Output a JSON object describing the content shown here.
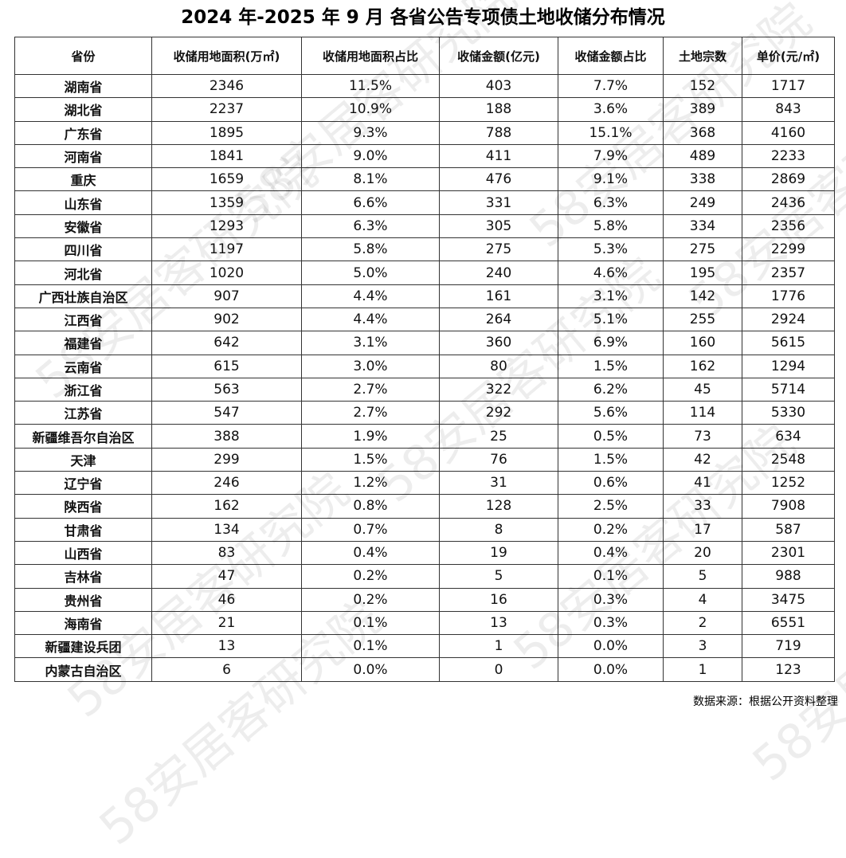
{
  "title": "2024 年-2025 年 9 月  各省公告专项债土地收储分布情况",
  "watermark": "58安居客研究院",
  "source": "数据来源：根据公开资料整理",
  "table": {
    "header": [
      "省份",
      "收储用地面积(万㎡)",
      "收储用地面积占比",
      "收储金额(亿元)",
      "收储金额占比",
      "土地宗数",
      "单价(元/㎡)"
    ],
    "rows": [
      [
        "湖南省",
        "2346",
        "11.5%",
        "403",
        "7.7%",
        "152",
        "1717"
      ],
      [
        "湖北省",
        "2237",
        "10.9%",
        "188",
        "3.6%",
        "389",
        "843"
      ],
      [
        "广东省",
        "1895",
        "9.3%",
        "788",
        "15.1%",
        "368",
        "4160"
      ],
      [
        "河南省",
        "1841",
        "9.0%",
        "411",
        "7.9%",
        "489",
        "2233"
      ],
      [
        "重庆",
        "1659",
        "8.1%",
        "476",
        "9.1%",
        "338",
        "2869"
      ],
      [
        "山东省",
        "1359",
        "6.6%",
        "331",
        "6.3%",
        "249",
        "2436"
      ],
      [
        "安徽省",
        "1293",
        "6.3%",
        "305",
        "5.8%",
        "334",
        "2356"
      ],
      [
        "四川省",
        "1197",
        "5.8%",
        "275",
        "5.3%",
        "275",
        "2299"
      ],
      [
        "河北省",
        "1020",
        "5.0%",
        "240",
        "4.6%",
        "195",
        "2357"
      ],
      [
        "广西壮族自治区",
        "907",
        "4.4%",
        "161",
        "3.1%",
        "142",
        "1776"
      ],
      [
        "江西省",
        "902",
        "4.4%",
        "264",
        "5.1%",
        "255",
        "2924"
      ],
      [
        "福建省",
        "642",
        "3.1%",
        "360",
        "6.9%",
        "160",
        "5615"
      ],
      [
        "云南省",
        "615",
        "3.0%",
        "80",
        "1.5%",
        "162",
        "1294"
      ],
      [
        "浙江省",
        "563",
        "2.7%",
        "322",
        "6.2%",
        "45",
        "5714"
      ],
      [
        "江苏省",
        "547",
        "2.7%",
        "292",
        "5.6%",
        "114",
        "5330"
      ],
      [
        "新疆维吾尔自治区",
        "388",
        "1.9%",
        "25",
        "0.5%",
        "73",
        "634"
      ],
      [
        "天津",
        "299",
        "1.5%",
        "76",
        "1.5%",
        "42",
        "2548"
      ],
      [
        "辽宁省",
        "246",
        "1.2%",
        "31",
        "0.6%",
        "41",
        "1252"
      ],
      [
        "陕西省",
        "162",
        "0.8%",
        "128",
        "2.5%",
        "33",
        "7908"
      ],
      [
        "甘肃省",
        "134",
        "0.7%",
        "8",
        "0.2%",
        "17",
        "587"
      ],
      [
        "山西省",
        "83",
        "0.4%",
        "19",
        "0.4%",
        "20",
        "2301"
      ],
      [
        "吉林省",
        "47",
        "0.2%",
        "5",
        "0.1%",
        "5",
        "988"
      ],
      [
        "贵州省",
        "46",
        "0.2%",
        "16",
        "0.3%",
        "4",
        "3475"
      ],
      [
        "海南省",
        "21",
        "0.1%",
        "13",
        "0.3%",
        "2",
        "6551"
      ],
      [
        "新疆建设兵团",
        "13",
        "0.1%",
        "1",
        "0.0%",
        "3",
        "719"
      ],
      [
        "内蒙古自治区",
        "6",
        "0.0%",
        "0",
        "0.0%",
        "1",
        "123"
      ]
    ]
  }
}
